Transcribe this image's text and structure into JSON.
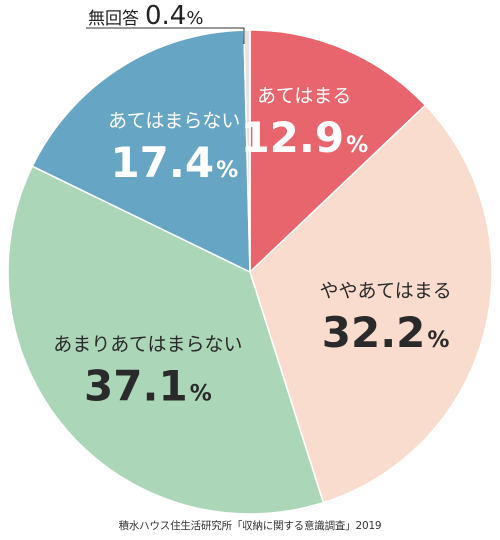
{
  "chart_data": {
    "type": "pie",
    "unit": "%",
    "start_angle_deg": 0,
    "direction": "clockwise",
    "slices": [
      {
        "label": "あてはまる",
        "value": 12.9,
        "value_text": "12.9",
        "color": "#e8656d",
        "text_color": "#ffffff"
      },
      {
        "label": "ややあてはまる",
        "value": 32.2,
        "value_text": "32.2",
        "color": "#f9dccd",
        "text_color": "#2a2a2a"
      },
      {
        "label": "あまりあてはまらない",
        "value": 37.1,
        "value_text": "37.1",
        "color": "#acd6b8",
        "text_color": "#2a2a2a"
      },
      {
        "label": "あてはまらない",
        "value": 17.4,
        "value_text": "17.4",
        "color": "#67a5c4",
        "text_color": "#ffffff"
      },
      {
        "label": "無回答",
        "value": 0.4,
        "value_text": "0.4",
        "color": "#e3e3e3",
        "text_color": "#222222"
      }
    ],
    "source": "積水ハウス住生活研究所「収納に関する意識調査」2019"
  }
}
